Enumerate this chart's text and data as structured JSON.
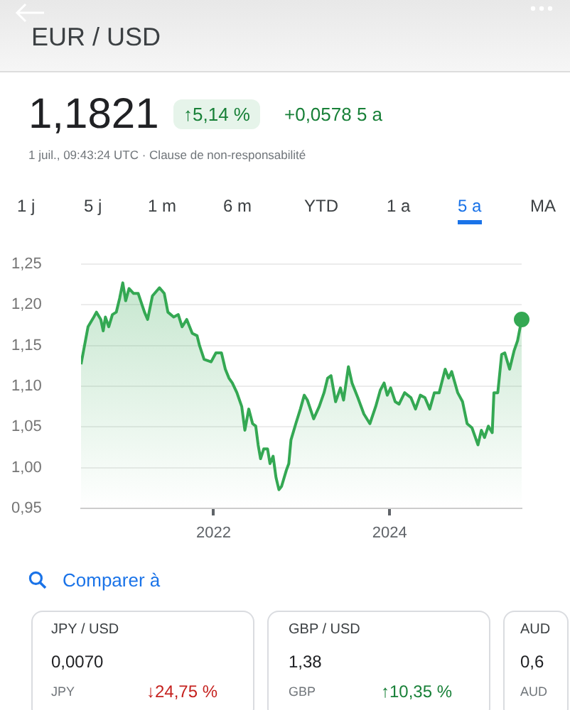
{
  "chart_data": {
    "type": "area",
    "title": "EUR / USD",
    "annotations": [
      "1,1821",
      "↑5,14 %",
      "+0,0578 5 a",
      "1 juil., 09:43:24 UTC · Clause de non-responsabilité",
      "1 j",
      "5 j",
      "1 m",
      "6 m",
      "YTD",
      "1 a",
      "5 a",
      "MA",
      "Comparer à",
      "JPY / USD",
      "0,0070",
      "JPY",
      "↓24,75 %",
      "GBP / USD",
      "1,38",
      "GBP",
      "↑10,35 %",
      "AUD",
      "0,6",
      "AUD"
    ],
    "x": [
      "2020-07-01",
      "2020-07-30",
      "2020-08-23",
      "2020-09-03",
      "2020-09-21",
      "2020-10-01",
      "2020-10-10",
      "2020-10-24",
      "2020-11-08",
      "2020-11-24",
      "2020-12-08",
      "2020-12-21",
      "2021-01-02",
      "2021-01-16",
      "2021-02-04",
      "2021-02-23",
      "2021-03-21",
      "2021-04-03",
      "2021-04-23",
      "2021-05-22",
      "2021-06-11",
      "2021-06-26",
      "2021-07-20",
      "2021-08-08",
      "2021-08-24",
      "2021-09-12",
      "2021-10-05",
      "2021-10-25",
      "2021-11-04",
      "2021-11-23",
      "2021-12-22",
      "2022-01-11",
      "2022-02-03",
      "2022-02-19",
      "2022-03-06",
      "2022-03-20",
      "2022-04-08",
      "2022-04-28",
      "2022-05-11",
      "2022-05-27",
      "2022-06-12",
      "2022-06-25",
      "2022-07-05",
      "2022-07-15",
      "2022-07-28",
      "2022-08-13",
      "2022-08-23",
      "2022-09-05",
      "2022-09-17",
      "2022-09-29",
      "2022-10-10",
      "2022-10-30",
      "2022-11-09",
      "2022-11-18",
      "2022-12-08",
      "2022-12-27",
      "2023-01-12",
      "2023-01-25",
      "2023-02-20",
      "2023-03-15",
      "2023-04-04",
      "2023-04-19",
      "2023-05-03",
      "2023-05-22",
      "2023-06-11",
      "2023-06-24",
      "2023-07-14",
      "2023-07-29",
      "2023-08-22",
      "2023-09-16",
      "2023-10-11",
      "2023-11-04",
      "2023-11-23",
      "2023-12-09",
      "2023-12-22",
      "2024-01-05",
      "2024-01-24",
      "2024-02-09",
      "2024-03-03",
      "2024-03-29",
      "2024-04-17",
      "2024-05-07",
      "2024-05-26",
      "2024-06-15",
      "2024-07-04",
      "2024-07-24",
      "2024-08-18",
      "2024-09-01",
      "2024-09-14",
      "2024-10-09",
      "2024-10-29",
      "2024-11-17",
      "2024-12-07",
      "2025-01-01",
      "2025-01-15",
      "2025-01-28",
      "2025-02-13",
      "2025-03-01",
      "2025-03-08",
      "2025-03-24",
      "2025-04-09",
      "2025-04-22",
      "2025-05-12",
      "2025-05-31",
      "2025-06-14",
      "2025-07-01"
    ],
    "series": [
      {
        "color": "#34a853",
        "values": [
          1.127,
          1.173,
          1.185,
          1.191,
          1.182,
          1.168,
          1.185,
          1.173,
          1.188,
          1.191,
          1.208,
          1.227,
          1.205,
          1.22,
          1.214,
          1.214,
          1.191,
          1.182,
          1.211,
          1.221,
          1.214,
          1.191,
          1.185,
          1.188,
          1.173,
          1.182,
          1.165,
          1.162,
          1.15,
          1.133,
          1.13,
          1.141,
          1.141,
          1.121,
          1.11,
          1.104,
          1.092,
          1.075,
          1.046,
          1.072,
          1.054,
          1.051,
          1.028,
          1.011,
          1.023,
          1.023,
          1.005,
          1.014,
          0.988,
          0.973,
          0.977,
          0.997,
          1.005,
          1.034,
          1.054,
          1.072,
          1.089,
          1.083,
          1.06,
          1.075,
          1.092,
          1.11,
          1.113,
          1.081,
          1.098,
          1.083,
          1.124,
          1.104,
          1.086,
          1.066,
          1.054,
          1.075,
          1.095,
          1.104,
          1.089,
          1.098,
          1.081,
          1.078,
          1.092,
          1.086,
          1.072,
          1.089,
          1.086,
          1.072,
          1.092,
          1.092,
          1.121,
          1.11,
          1.118,
          1.092,
          1.081,
          1.054,
          1.049,
          1.028,
          1.046,
          1.037,
          1.051,
          1.043,
          1.092,
          1.092,
          1.139,
          1.141,
          1.121,
          1.144,
          1.156,
          1.182
        ]
      },
      {
        "type": "scatter",
        "color": "#34a853",
        "x": [
          "2025-07-01"
        ],
        "values": [
          1.182
        ]
      }
    ],
    "xlim": [
      "2020-07-01",
      "2025-07-01"
    ],
    "xticks": [
      "2022",
      "2024"
    ],
    "ylim": [
      0.95,
      1.25
    ],
    "yticks": [
      {
        "value": 0.95,
        "label": "0,95"
      },
      {
        "value": 1.0,
        "label": "1,00"
      },
      {
        "value": 1.05,
        "label": "1,05"
      },
      {
        "value": 1.1,
        "label": "1,10"
      },
      {
        "value": 1.15,
        "label": "1,15"
      },
      {
        "value": 1.2,
        "label": "1,20"
      },
      {
        "value": 1.25,
        "label": "1,25"
      }
    ],
    "grid": "y"
  }
}
